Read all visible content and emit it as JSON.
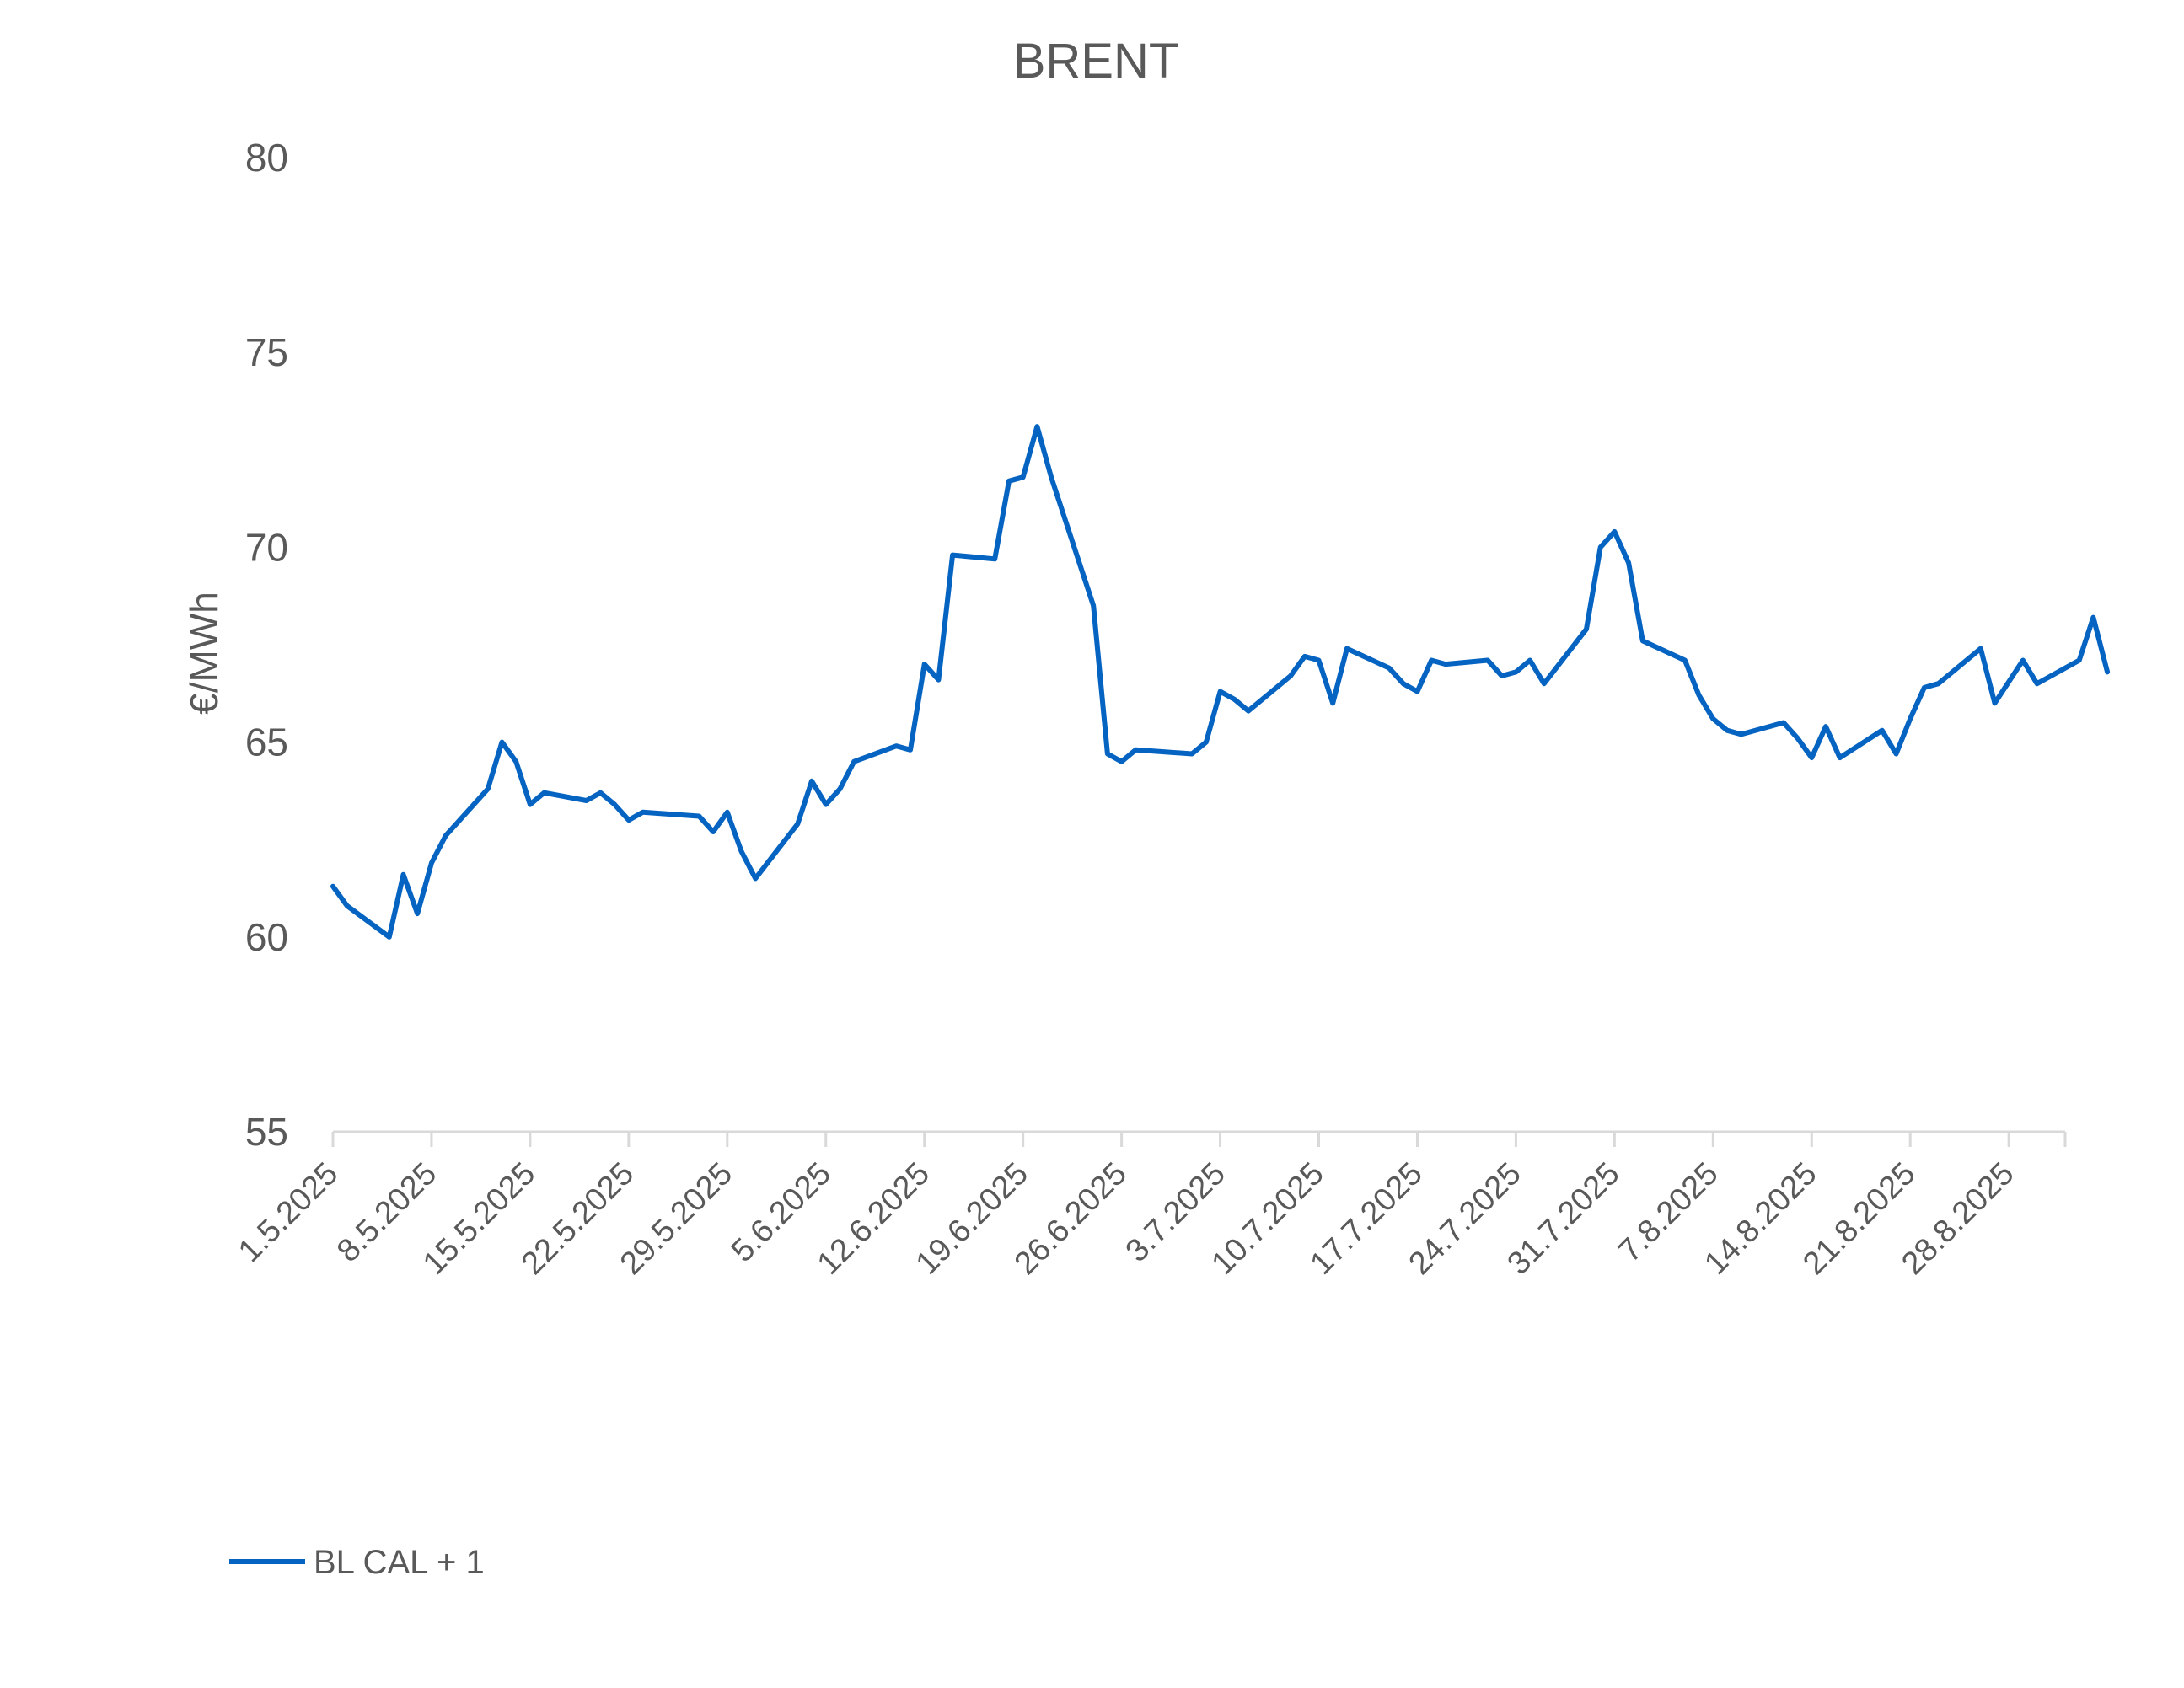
{
  "chart_data": {
    "type": "line",
    "title": "BRENT",
    "xlabel": "",
    "ylabel": "€/MWh",
    "ylim": [
      55,
      80
    ],
    "yticks": [
      "55",
      "60",
      "65",
      "70",
      "75",
      "80"
    ],
    "xticks": [
      "1.5.2025",
      "8.5.2025",
      "15.5.2025",
      "22.5.2025",
      "29.5.2025",
      "5.6.2025",
      "12.6.2025",
      "19.6.2025",
      "26.6.2025",
      "3.7.2025",
      "10.7.2025",
      "17.7.2025",
      "24.7.2025",
      "31.7.2025",
      "7.8.2025",
      "14.8.2025",
      "21.8.2025",
      "28.8.2025"
    ],
    "xlim": [
      "1.5.2025",
      "31.8.2025"
    ],
    "grid": false,
    "legend_position": "bottom-left",
    "series": [
      {
        "name": "BL CAL + 1",
        "color": "#0563C1",
        "points": [
          [
            "1.5.2025",
            61.3
          ],
          [
            "2.5.2025",
            60.8
          ],
          [
            "5.5.2025",
            60.0
          ],
          [
            "6.5.2025",
            61.6
          ],
          [
            "7.5.2025",
            60.6
          ],
          [
            "8.5.2025",
            61.9
          ],
          [
            "9.5.2025",
            62.6
          ],
          [
            "12.5.2025",
            63.8
          ],
          [
            "13.5.2025",
            65.0
          ],
          [
            "14.5.2025",
            64.5
          ],
          [
            "15.5.2025",
            63.4
          ],
          [
            "16.5.2025",
            63.7
          ],
          [
            "19.5.2025",
            63.5
          ],
          [
            "20.5.2025",
            63.7
          ],
          [
            "21.5.2025",
            63.4
          ],
          [
            "22.5.2025",
            63.0
          ],
          [
            "23.5.2025",
            63.2
          ],
          [
            "27.5.2025",
            63.1
          ],
          [
            "28.5.2025",
            62.7
          ],
          [
            "29.5.2025",
            63.2
          ],
          [
            "30.5.2025",
            62.2
          ],
          [
            "31.5.2025",
            61.5
          ],
          [
            "3.6.2025",
            62.9
          ],
          [
            "4.6.2025",
            64.0
          ],
          [
            "5.6.2025",
            63.4
          ],
          [
            "6.6.2025",
            63.8
          ],
          [
            "7.6.2025",
            64.5
          ],
          [
            "10.6.2025",
            64.9
          ],
          [
            "11.6.2025",
            64.8
          ],
          [
            "12.6.2025",
            67.0
          ],
          [
            "13.6.2025",
            66.6
          ],
          [
            "14.6.2025",
            69.8
          ],
          [
            "17.6.2025",
            69.7
          ],
          [
            "18.6.2025",
            71.7
          ],
          [
            "19.6.2025",
            71.8
          ],
          [
            "20.6.2025",
            73.1
          ],
          [
            "21.6.2025",
            71.8
          ],
          [
            "24.6.2025",
            68.5
          ],
          [
            "25.6.2025",
            64.7
          ],
          [
            "26.6.2025",
            64.5
          ],
          [
            "27.6.2025",
            64.8
          ],
          [
            "1.7.2025",
            64.7
          ],
          [
            "2.7.2025",
            65.0
          ],
          [
            "3.7.2025",
            66.3
          ],
          [
            "4.7.2025",
            66.1
          ],
          [
            "5.7.2025",
            65.8
          ],
          [
            "8.7.2025",
            66.7
          ],
          [
            "9.7.2025",
            67.2
          ],
          [
            "10.7.2025",
            67.1
          ],
          [
            "11.7.2025",
            66.0
          ],
          [
            "12.7.2025",
            67.4
          ],
          [
            "15.7.2025",
            66.9
          ],
          [
            "16.7.2025",
            66.5
          ],
          [
            "17.7.2025",
            66.3
          ],
          [
            "18.7.2025",
            67.1
          ],
          [
            "19.7.2025",
            67.0
          ],
          [
            "22.7.2025",
            67.1
          ],
          [
            "23.7.2025",
            66.7
          ],
          [
            "24.7.2025",
            66.8
          ],
          [
            "25.7.2025",
            67.1
          ],
          [
            "26.7.2025",
            66.5
          ],
          [
            "29.7.2025",
            67.9
          ],
          [
            "30.7.2025",
            70.0
          ],
          [
            "31.7.2025",
            70.4
          ],
          [
            "1.8.2025",
            69.6
          ],
          [
            "2.8.2025",
            67.6
          ],
          [
            "5.8.2025",
            67.1
          ],
          [
            "6.8.2025",
            66.2
          ],
          [
            "7.8.2025",
            65.6
          ],
          [
            "8.8.2025",
            65.3
          ],
          [
            "9.8.2025",
            65.2
          ],
          [
            "12.8.2025",
            65.5
          ],
          [
            "13.8.2025",
            65.1
          ],
          [
            "14.8.2025",
            64.6
          ],
          [
            "15.8.2025",
            65.4
          ],
          [
            "16.8.2025",
            64.6
          ],
          [
            "19.8.2025",
            65.3
          ],
          [
            "20.8.2025",
            64.7
          ],
          [
            "21.8.2025",
            65.6
          ],
          [
            "22.8.2025",
            66.4
          ],
          [
            "23.8.2025",
            66.5
          ],
          [
            "26.8.2025",
            67.4
          ],
          [
            "27.8.2025",
            66.0
          ],
          [
            "29.8.2025",
            67.1
          ],
          [
            "30.8.2025",
            66.5
          ],
          [
            "2.9.2025",
            67.1
          ],
          [
            "3.9.2025",
            68.2
          ],
          [
            "4.9.2025",
            66.8
          ]
        ]
      }
    ]
  }
}
